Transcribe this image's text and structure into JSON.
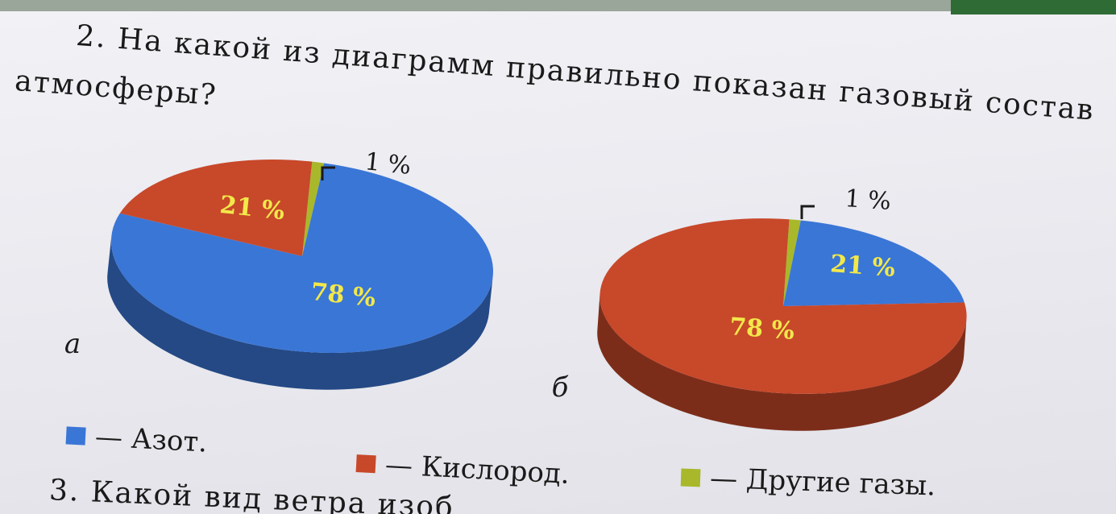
{
  "question2": {
    "line1": "2. На какой из диаграмм правильно показан газовый состав",
    "line2": "атмосферы?"
  },
  "question3": {
    "text": "3. Какой вид ветра изоб"
  },
  "legend": [
    {
      "label": "— Азот.",
      "color": "#3a76d6"
    },
    {
      "label": "— Кислород.",
      "color": "#c8482a"
    },
    {
      "label": "— Другие газы.",
      "color": "#a8b82a"
    }
  ],
  "colors": {
    "nitrogen": "#3a76d6",
    "oxygen": "#c8482a",
    "other": "#a8b82a",
    "label_text": "#f2e84a"
  },
  "chart_data": [
    {
      "type": "pie",
      "label": "а",
      "slices": [
        {
          "name": "Азот",
          "value": 78,
          "color": "#3a76d6",
          "text": "78 %"
        },
        {
          "name": "Кислород",
          "value": 21,
          "color": "#c8482a",
          "text": "21 %"
        },
        {
          "name": "Другие газы",
          "value": 1,
          "color": "#a8b82a",
          "text": "1 %"
        }
      ]
    },
    {
      "type": "pie",
      "label": "б",
      "slices": [
        {
          "name": "Азот",
          "value": 21,
          "color": "#3a76d6",
          "text": "21 %"
        },
        {
          "name": "Кислород",
          "value": 78,
          "color": "#c8482a",
          "text": "78 %"
        },
        {
          "name": "Другие газы",
          "value": 1,
          "color": "#a8b82a",
          "text": "1 %"
        }
      ]
    }
  ]
}
